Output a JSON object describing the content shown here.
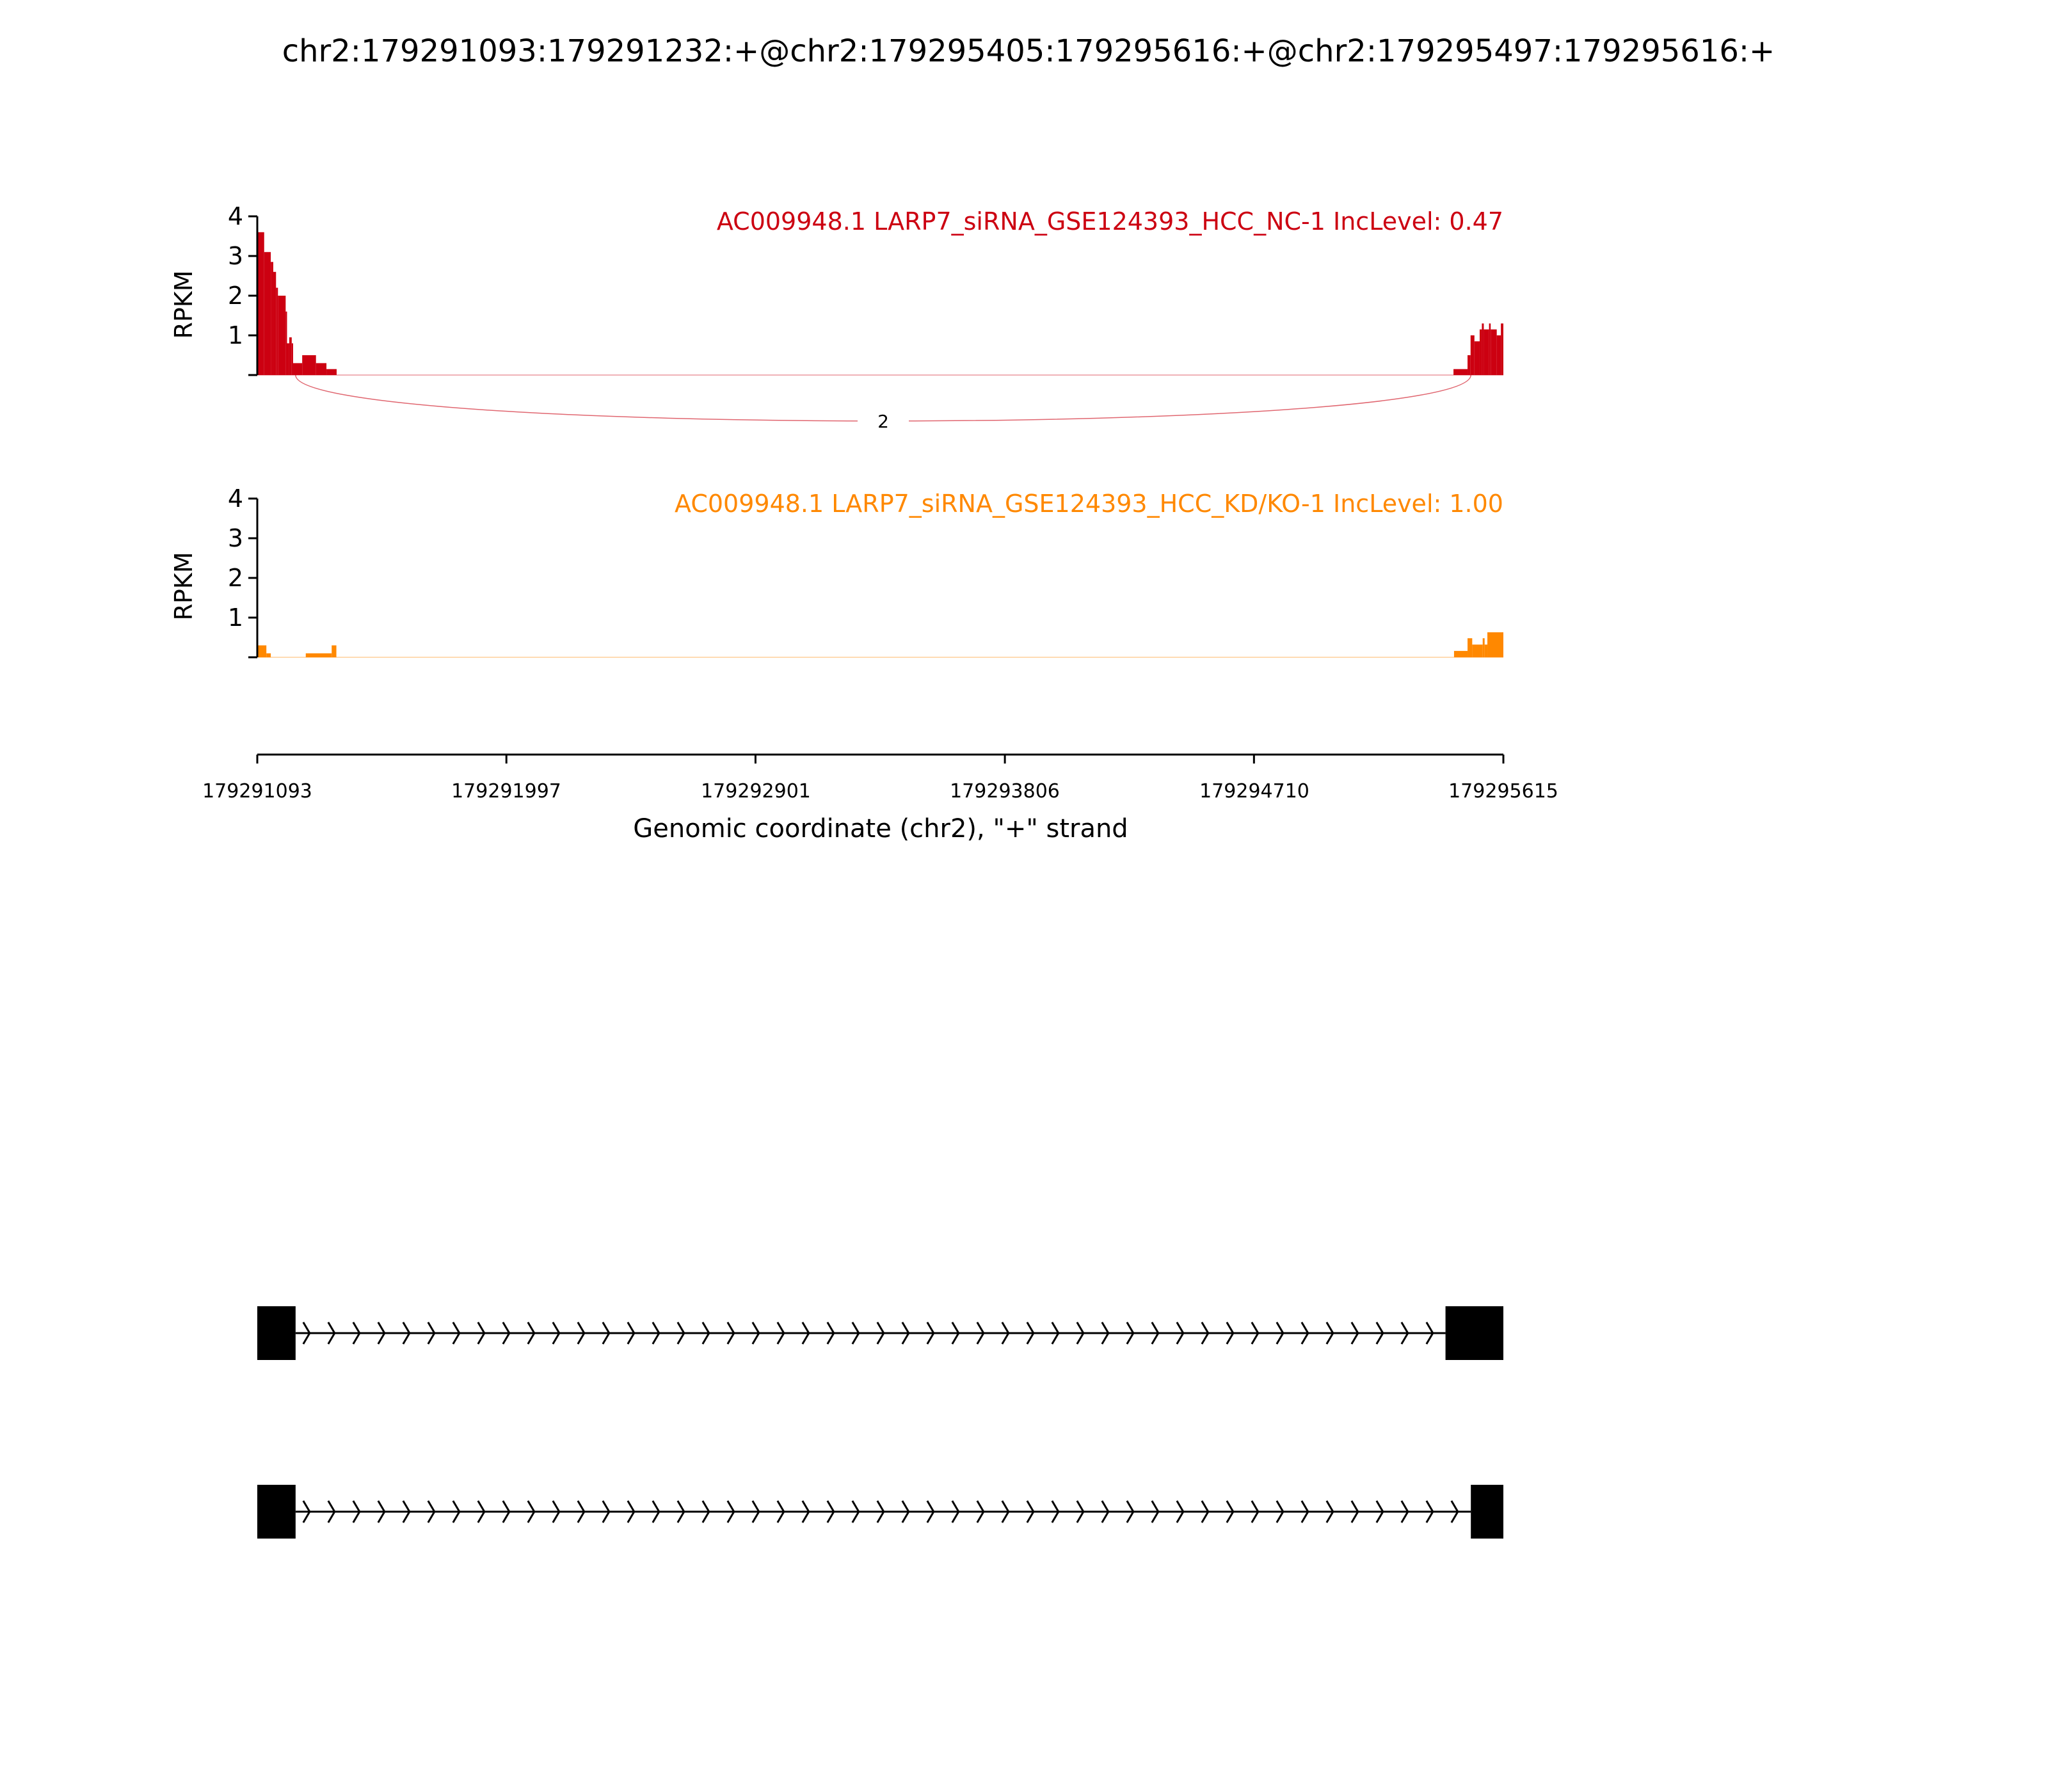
{
  "chart_data": {
    "type": "area",
    "title": "chr2:179291093:179291232:+@chr2:179295405:179295616:+@chr2:179295497:179295616:+",
    "xlabel": "Genomic coordinate (chr2), \"+\" strand",
    "xlim": [
      179291093,
      179295615
    ],
    "xticks": [
      "179291093",
      "179291997",
      "179292901",
      "179293806",
      "179294710",
      "179295615"
    ],
    "panels": [
      {
        "label": "AC009948.1 LARP7_siRNA_GSE124393_HCC_NC-1 IncLevel: 0.47",
        "color": "#cc0011",
        "ylabel": "RPKM",
        "ylim": [
          0,
          4
        ],
        "yticks": [
          "1",
          "2",
          "3",
          "4"
        ],
        "coverage": [
          [
            179291093,
            179291118,
            3.6
          ],
          [
            179291118,
            179291142,
            3.1
          ],
          [
            179291142,
            179291151,
            2.85
          ],
          [
            179291151,
            179291161,
            2.6
          ],
          [
            179291161,
            179291168,
            2.2
          ],
          [
            179291168,
            179291196,
            2.0
          ],
          [
            179291196,
            179291201,
            1.6
          ],
          [
            179291201,
            179291209,
            0.8
          ],
          [
            179291209,
            179291218,
            0.95
          ],
          [
            179291218,
            179291223,
            0.8
          ],
          [
            179291223,
            179291256,
            0.3
          ],
          [
            179291256,
            179291306,
            0.5
          ],
          [
            179291306,
            179291344,
            0.3
          ],
          [
            179291344,
            179291381,
            0.15
          ],
          [
            179295434,
            179295485,
            0.15
          ],
          [
            179295485,
            179295496,
            0.5
          ],
          [
            179295496,
            179295510,
            1.0
          ],
          [
            179295510,
            179295529,
            0.85
          ],
          [
            179295529,
            179295537,
            1.15
          ],
          [
            179295537,
            179295544,
            1.3
          ],
          [
            179295544,
            179295563,
            1.15
          ],
          [
            179295563,
            179295569,
            1.3
          ],
          [
            179295569,
            179295591,
            1.15
          ],
          [
            179295591,
            179295606,
            1.0
          ],
          [
            179295606,
            179295615,
            1.3
          ]
        ],
        "junctions": [
          {
            "start": 179291232,
            "end": 179295497,
            "count": "2"
          }
        ]
      },
      {
        "label": "AC009948.1 LARP7_siRNA_GSE124393_HCC_KD/KO-1 IncLevel: 1.00",
        "color": "#ff8800",
        "ylabel": "RPKM",
        "ylim": [
          0,
          4
        ],
        "yticks": [
          "1",
          "2",
          "3",
          "4"
        ],
        "coverage": [
          [
            179291093,
            179291126,
            0.3
          ],
          [
            179291126,
            179291142,
            0.1
          ],
          [
            179291269,
            179291363,
            0.1
          ],
          [
            179291363,
            179291380,
            0.3
          ],
          [
            179295436,
            179295485,
            0.16
          ],
          [
            179295485,
            179295502,
            0.48
          ],
          [
            179295502,
            179295540,
            0.32
          ],
          [
            179295540,
            179295547,
            0.48
          ],
          [
            179295547,
            179295557,
            0.32
          ],
          [
            179295557,
            179295615,
            0.63
          ]
        ],
        "junctions": []
      }
    ],
    "gene_models": [
      {
        "exons": [
          [
            179291093,
            179291232
          ],
          [
            179295405,
            179295616
          ]
        ]
      },
      {
        "exons": [
          [
            179291093,
            179291232
          ],
          [
            179295497,
            179295616
          ]
        ]
      }
    ]
  }
}
